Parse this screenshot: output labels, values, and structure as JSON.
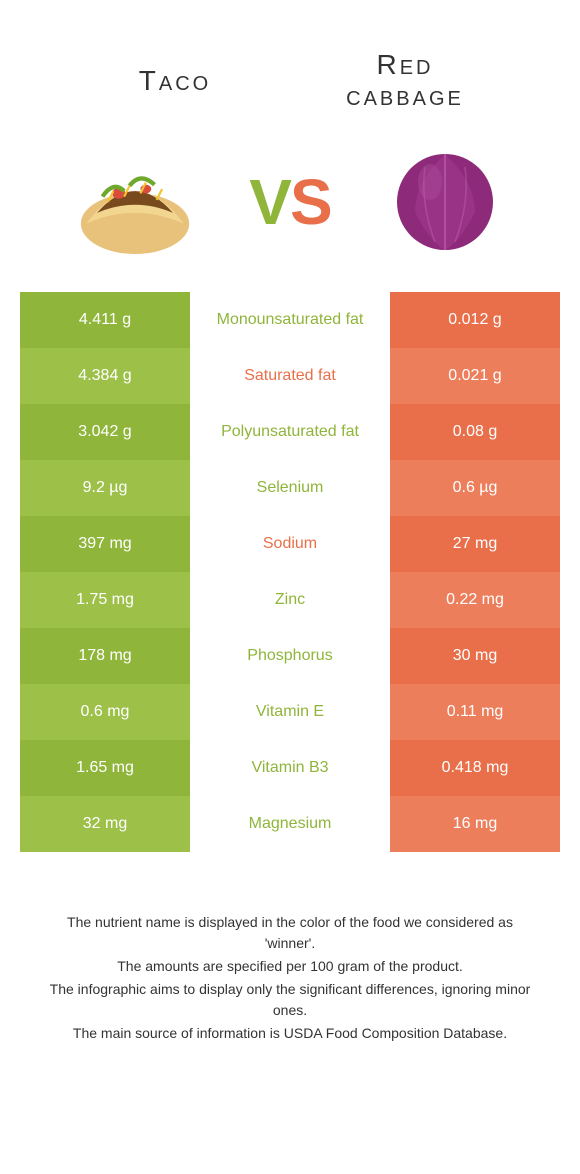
{
  "colors": {
    "left": "#8fb53a",
    "leftAlt": "#9cc048",
    "right": "#e96f4a",
    "rightAlt": "#ec7e5c",
    "titleText": "#333333"
  },
  "header": {
    "leftTitle": "Taco",
    "rightTitleLine1": "Red",
    "rightTitleLine2": "cabbage",
    "vsV": "V",
    "vsS": "S"
  },
  "rows": [
    {
      "label": "Monounsaturated fat",
      "left": "4.411 g",
      "right": "0.012 g",
      "winner": "left"
    },
    {
      "label": "Saturated fat",
      "left": "4.384 g",
      "right": "0.021 g",
      "winner": "right"
    },
    {
      "label": "Polyunsaturated fat",
      "left": "3.042 g",
      "right": "0.08 g",
      "winner": "left"
    },
    {
      "label": "Selenium",
      "left": "9.2 µg",
      "right": "0.6 µg",
      "winner": "left"
    },
    {
      "label": "Sodium",
      "left": "397 mg",
      "right": "27 mg",
      "winner": "right"
    },
    {
      "label": "Zinc",
      "left": "1.75 mg",
      "right": "0.22 mg",
      "winner": "left"
    },
    {
      "label": "Phosphorus",
      "left": "178 mg",
      "right": "30 mg",
      "winner": "left"
    },
    {
      "label": "Vitamin E",
      "left": "0.6 mg",
      "right": "0.11 mg",
      "winner": "left"
    },
    {
      "label": "Vitamin B3",
      "left": "1.65 mg",
      "right": "0.418 mg",
      "winner": "left"
    },
    {
      "label": "Magnesium",
      "left": "32 mg",
      "right": "16 mg",
      "winner": "left"
    }
  ],
  "footnotes": [
    "The nutrient name is displayed in the color of the food we considered as 'winner'.",
    "The amounts are specified per 100 gram of the product.",
    "The infographic aims to display only the significant differences, ignoring minor ones.",
    "The main source of information is USDA Food Composition Database."
  ]
}
